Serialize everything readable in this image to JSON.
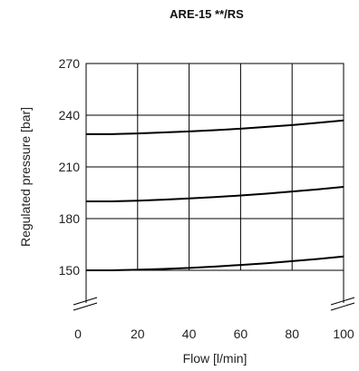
{
  "chart_data": {
    "type": "line",
    "title": "ARE-15 **/RS",
    "xlabel": "Flow [l/min]",
    "ylabel": "Regulated pressure [bar]",
    "xlim": [
      0,
      100
    ],
    "ylim": [
      150,
      270
    ],
    "x_ticks": [
      0,
      20,
      40,
      60,
      80,
      100
    ],
    "y_ticks": [
      150,
      180,
      210,
      240,
      270
    ],
    "y_axis_break": true,
    "grid": true,
    "legend": "none",
    "series": [
      {
        "x": [
          0,
          10,
          20,
          30,
          40,
          50,
          60,
          70,
          80,
          90,
          100
        ],
        "y": [
          229,
          229,
          229.4,
          230,
          230.6,
          231.3,
          232.2,
          233.2,
          234.3,
          235.6,
          237
        ]
      },
      {
        "x": [
          0,
          10,
          20,
          30,
          40,
          50,
          60,
          70,
          80,
          90,
          100
        ],
        "y": [
          190,
          190,
          190.4,
          191,
          191.7,
          192.5,
          193.4,
          194.5,
          195.7,
          197,
          198.4
        ]
      },
      {
        "x": [
          0,
          10,
          20,
          30,
          40,
          50,
          60,
          70,
          80,
          90,
          100
        ],
        "y": [
          150,
          150,
          150.3,
          150.8,
          151.4,
          152.2,
          153.1,
          154.1,
          155.3,
          156.6,
          158
        ]
      }
    ]
  }
}
